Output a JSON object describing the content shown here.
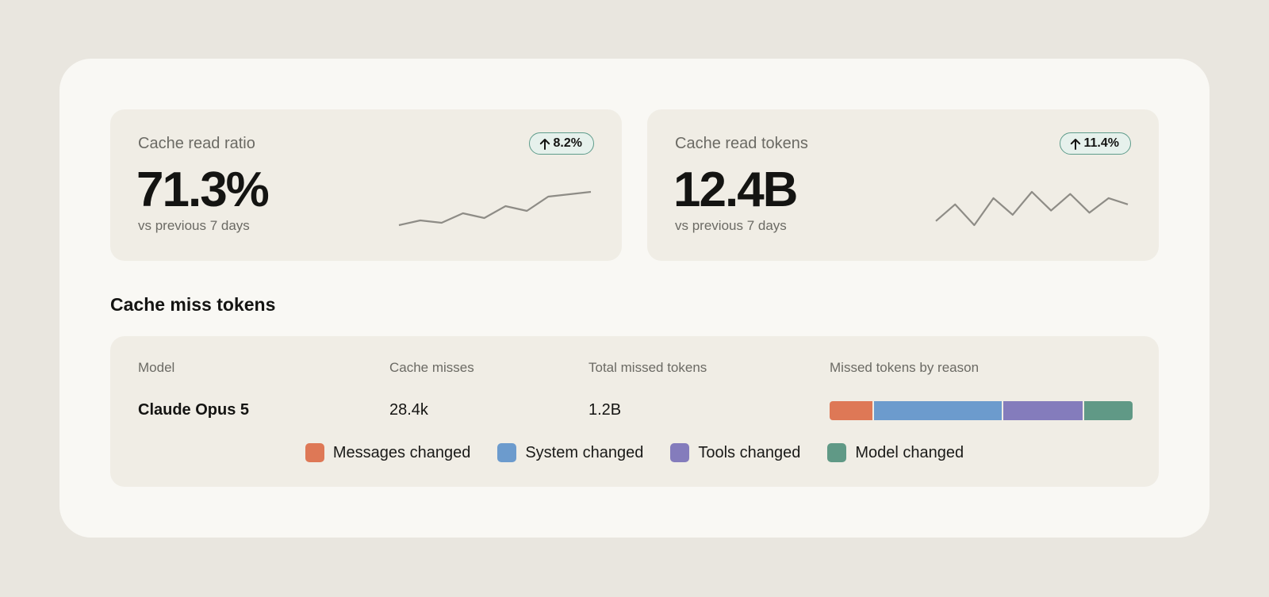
{
  "stats": [
    {
      "label": "Cache read ratio",
      "value": "71.3%",
      "sub": "vs previous 7 days",
      "change": "8.2%",
      "trend_values": [
        1,
        3,
        2,
        6,
        4,
        9,
        7,
        13,
        14,
        15
      ]
    },
    {
      "label": "Cache read tokens",
      "value": "12.4B",
      "sub": "vs previous 7 days",
      "change": "11.4%",
      "trend_values": [
        4,
        12,
        2,
        15,
        7,
        18,
        9,
        17,
        8,
        15,
        12
      ]
    }
  ],
  "miss_section": {
    "title": "Cache miss tokens",
    "columns": [
      "Model",
      "Cache misses",
      "Total missed tokens",
      "Missed tokens by reason"
    ],
    "rows": [
      {
        "model": "Claude Opus 5",
        "cache_misses": "28.4k",
        "total_missed": "1.2B",
        "reason_shares": [
          14,
          42,
          26,
          16
        ]
      }
    ],
    "legend": [
      {
        "label": "Messages changed",
        "color": "#de7856"
      },
      {
        "label": "System changed",
        "color": "#6c9bcd"
      },
      {
        "label": "Tools changed",
        "color": "#847cbc"
      },
      {
        "label": "Model changed",
        "color": "#609986"
      }
    ]
  },
  "colors": {
    "background": "#e9e6df",
    "panel": "#f9f8f4",
    "card": "#f0ede5",
    "badge_border": "#5e9c8b",
    "sparkline": "#8e8c86"
  }
}
